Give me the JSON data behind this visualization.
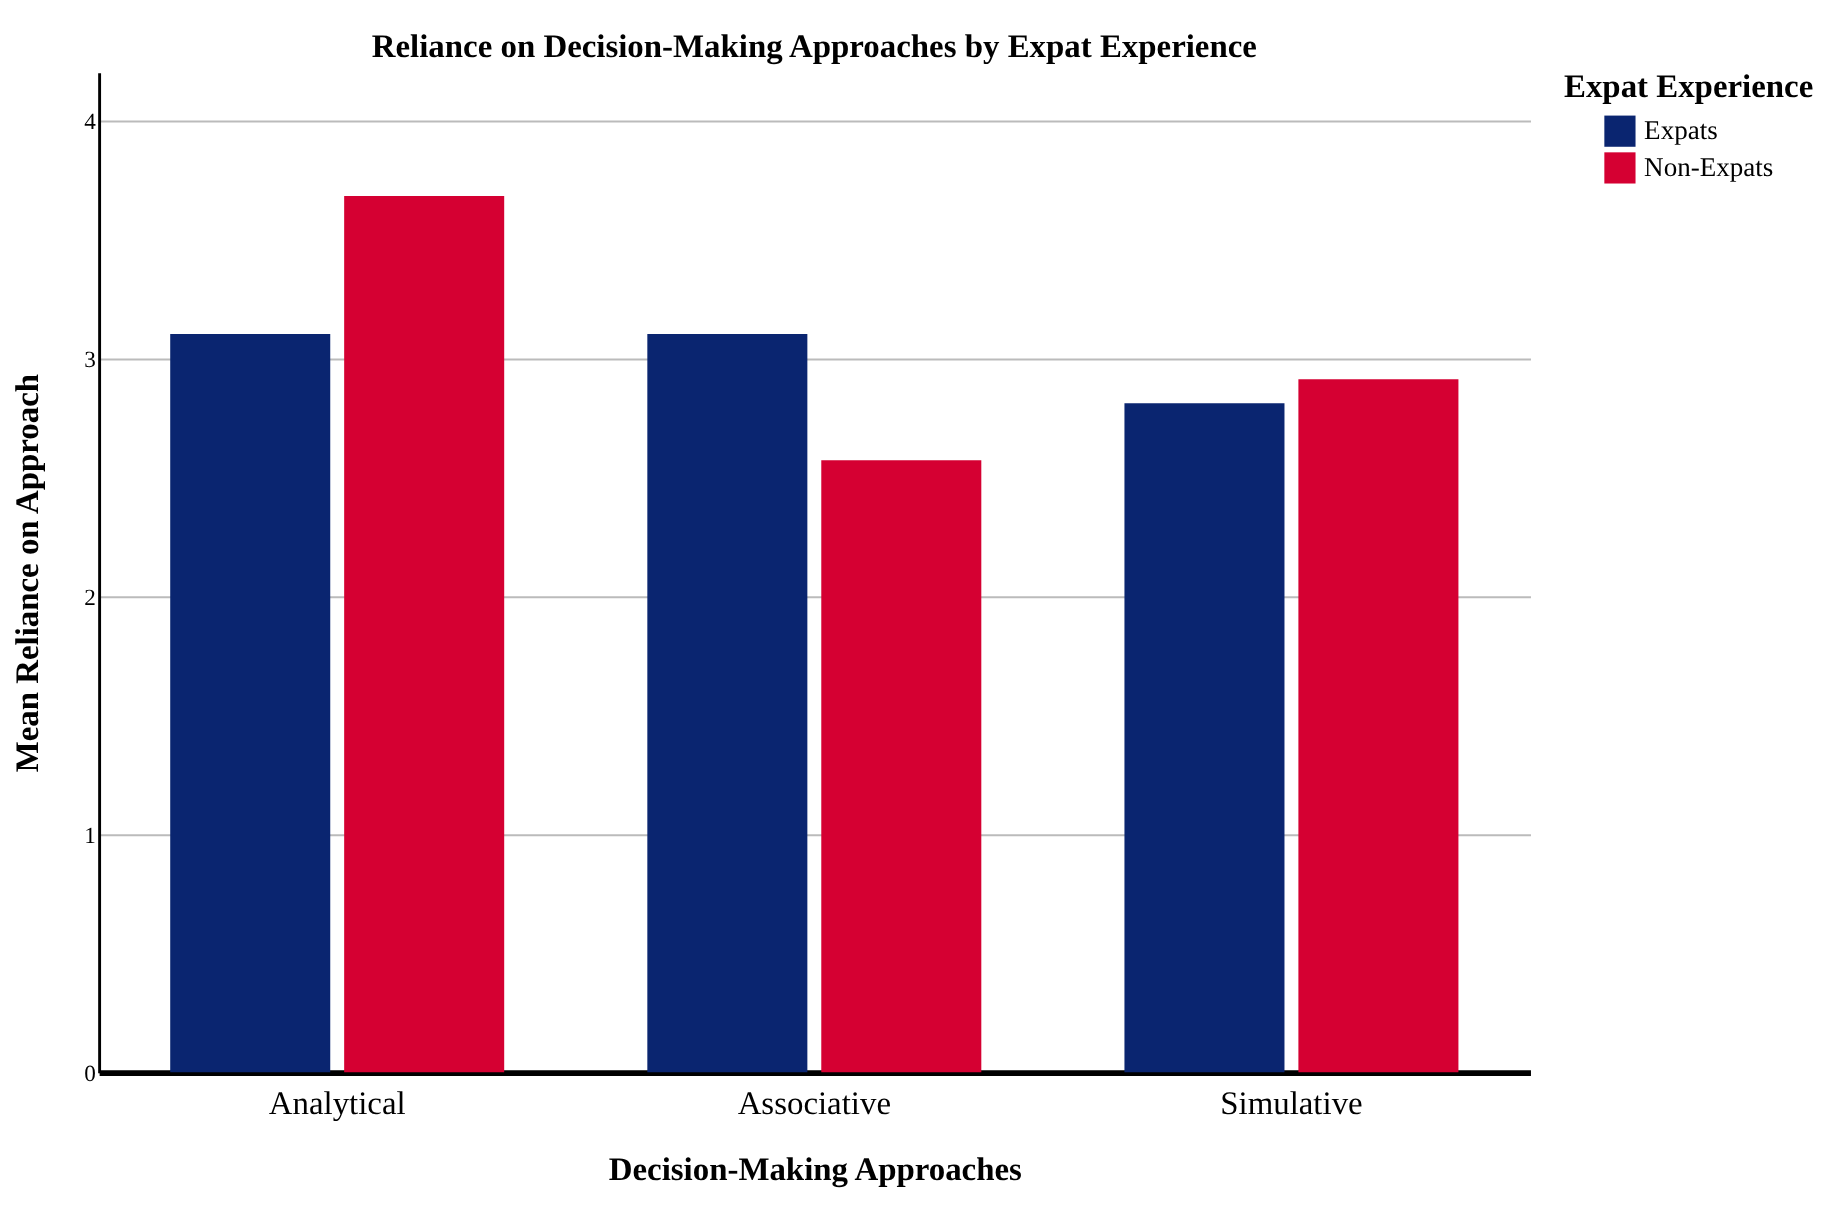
{
  "chart_data": {
    "type": "bar",
    "title": "Reliance on Decision-Making Approaches by Expat Experience",
    "xlabel": "Decision-Making Approaches",
    "ylabel": "Mean Reliance on Approach",
    "legend_title": "Expat Experience",
    "categories": [
      "Analytical",
      "Associative",
      "Simulative"
    ],
    "series": [
      {
        "name": "Expats",
        "color": "#0a2570",
        "values": [
          3.1,
          3.1,
          2.81
        ]
      },
      {
        "name": "Non-Expats",
        "color": "#d50032",
        "values": [
          3.68,
          2.57,
          2.91
        ]
      }
    ],
    "ylim": [
      0,
      4.2
    ],
    "yticks": [
      0,
      1,
      2,
      3,
      4
    ],
    "grid": "y",
    "legend": "top right"
  }
}
